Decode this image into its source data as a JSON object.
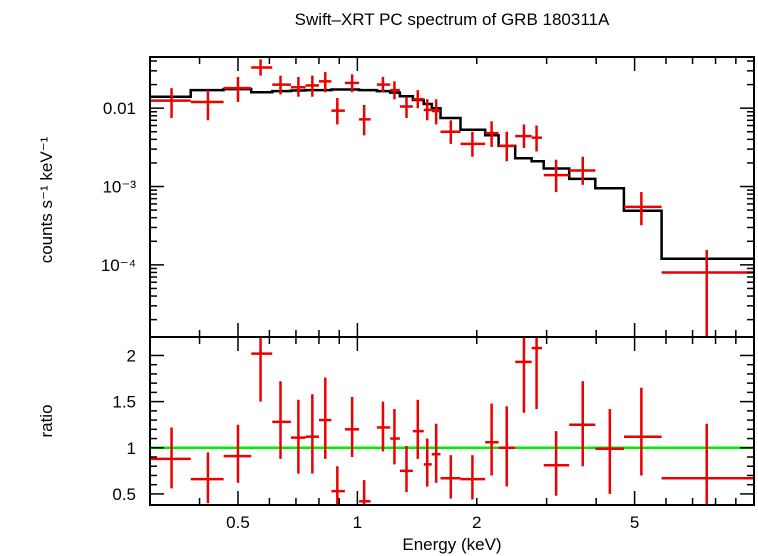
{
  "chart_data": [
    {
      "type": "scatter",
      "panel": "spectrum",
      "title": "Swift–XRT PC spectrum of GRB 180311A",
      "ylabel": "counts s⁻¹ keV⁻¹",
      "xscale": "log",
      "yscale": "log",
      "xlim": [
        0.3,
        10
      ],
      "ylim": [
        1.2e-05,
        0.045
      ],
      "ytick_labels": [
        "0.01",
        "10⁻³",
        "10⁻⁴"
      ],
      "colors": {
        "data": "#ee0000",
        "model": "#000000"
      },
      "series": [
        {
          "name": "data",
          "points": [
            {
              "x": 0.34,
              "xlo": 0.3,
              "xhi": 0.38,
              "y": 0.0125,
              "ylo": 0.0075,
              "yhi": 0.018
            },
            {
              "x": 0.42,
              "xlo": 0.38,
              "xhi": 0.46,
              "y": 0.012,
              "ylo": 0.007,
              "yhi": 0.017
            },
            {
              "x": 0.5,
              "xlo": 0.46,
              "xhi": 0.54,
              "y": 0.018,
              "ylo": 0.012,
              "yhi": 0.025
            },
            {
              "x": 0.57,
              "xlo": 0.54,
              "xhi": 0.61,
              "y": 0.033,
              "ylo": 0.026,
              "yhi": 0.042
            },
            {
              "x": 0.64,
              "xlo": 0.61,
              "xhi": 0.68,
              "y": 0.02,
              "ylo": 0.015,
              "yhi": 0.026
            },
            {
              "x": 0.71,
              "xlo": 0.68,
              "xhi": 0.74,
              "y": 0.0185,
              "ylo": 0.014,
              "yhi": 0.025
            },
            {
              "x": 0.77,
              "xlo": 0.74,
              "xhi": 0.8,
              "y": 0.0195,
              "ylo": 0.014,
              "yhi": 0.026
            },
            {
              "x": 0.83,
              "xlo": 0.8,
              "xhi": 0.86,
              "y": 0.022,
              "ylo": 0.016,
              "yhi": 0.029
            },
            {
              "x": 0.89,
              "xlo": 0.86,
              "xhi": 0.93,
              "y": 0.0093,
              "ylo": 0.0062,
              "yhi": 0.0135
            },
            {
              "x": 0.97,
              "xlo": 0.93,
              "xhi": 1.01,
              "y": 0.021,
              "ylo": 0.016,
              "yhi": 0.027
            },
            {
              "x": 1.04,
              "xlo": 1.01,
              "xhi": 1.08,
              "y": 0.0072,
              "ylo": 0.0045,
              "yhi": 0.011
            },
            {
              "x": 1.16,
              "xlo": 1.12,
              "xhi": 1.21,
              "y": 0.02,
              "ylo": 0.016,
              "yhi": 0.025
            },
            {
              "x": 1.24,
              "xlo": 1.21,
              "xhi": 1.28,
              "y": 0.017,
              "ylo": 0.013,
              "yhi": 0.022
            },
            {
              "x": 1.33,
              "xlo": 1.28,
              "xhi": 1.38,
              "y": 0.0105,
              "ylo": 0.0075,
              "yhi": 0.014
            },
            {
              "x": 1.42,
              "xlo": 1.38,
              "xhi": 1.47,
              "y": 0.013,
              "ylo": 0.01,
              "yhi": 0.017
            },
            {
              "x": 1.5,
              "xlo": 1.47,
              "xhi": 1.54,
              "y": 0.0095,
              "ylo": 0.007,
              "yhi": 0.013
            },
            {
              "x": 1.58,
              "xlo": 1.54,
              "xhi": 1.62,
              "y": 0.0092,
              "ylo": 0.0062,
              "yhi": 0.013
            },
            {
              "x": 1.72,
              "xlo": 1.62,
              "xhi": 1.82,
              "y": 0.005,
              "ylo": 0.0035,
              "yhi": 0.007
            },
            {
              "x": 1.95,
              "xlo": 1.82,
              "xhi": 2.1,
              "y": 0.0035,
              "ylo": 0.0024,
              "yhi": 0.005
            },
            {
              "x": 2.18,
              "xlo": 2.1,
              "xhi": 2.27,
              "y": 0.0048,
              "ylo": 0.0032,
              "yhi": 0.0068
            },
            {
              "x": 2.38,
              "xlo": 2.27,
              "xhi": 2.5,
              "y": 0.0033,
              "ylo": 0.0021,
              "yhi": 0.005
            },
            {
              "x": 2.63,
              "xlo": 2.5,
              "xhi": 2.75,
              "y": 0.0044,
              "ylo": 0.0031,
              "yhi": 0.0062
            },
            {
              "x": 2.83,
              "xlo": 2.75,
              "xhi": 2.92,
              "y": 0.0042,
              "ylo": 0.0028,
              "yhi": 0.006
            },
            {
              "x": 3.17,
              "xlo": 2.95,
              "xhi": 3.42,
              "y": 0.0014,
              "ylo": 0.00085,
              "yhi": 0.0022
            },
            {
              "x": 3.7,
              "xlo": 3.42,
              "xhi": 3.98,
              "y": 0.0016,
              "ylo": 0.00105,
              "yhi": 0.0024
            },
            {
              "x": 5.2,
              "xlo": 4.7,
              "xhi": 5.85,
              "y": 0.00055,
              "ylo": 0.00032,
              "yhi": 0.00085
            },
            {
              "x": 7.6,
              "xlo": 5.85,
              "xhi": 10.0,
              "y": 8e-05,
              "ylo": 1.2e-05,
              "yhi": 0.000155
            }
          ]
        },
        {
          "name": "model",
          "steps": [
            {
              "x0": 0.3,
              "x1": 0.38,
              "y": 0.014
            },
            {
              "x0": 0.38,
              "x1": 0.46,
              "y": 0.017
            },
            {
              "x0": 0.46,
              "x1": 0.54,
              "y": 0.0175
            },
            {
              "x0": 0.54,
              "x1": 0.61,
              "y": 0.016
            },
            {
              "x0": 0.61,
              "x1": 0.68,
              "y": 0.0165
            },
            {
              "x0": 0.68,
              "x1": 0.74,
              "y": 0.0168
            },
            {
              "x0": 0.74,
              "x1": 0.86,
              "y": 0.017
            },
            {
              "x0": 0.86,
              "x1": 1.01,
              "y": 0.0173
            },
            {
              "x0": 1.01,
              "x1": 1.12,
              "y": 0.017
            },
            {
              "x0": 1.12,
              "x1": 1.21,
              "y": 0.0165
            },
            {
              "x0": 1.21,
              "x1": 1.28,
              "y": 0.0158
            },
            {
              "x0": 1.28,
              "x1": 1.38,
              "y": 0.0142
            },
            {
              "x0": 1.38,
              "x1": 1.47,
              "y": 0.0127
            },
            {
              "x0": 1.47,
              "x1": 1.54,
              "y": 0.0113
            },
            {
              "x0": 1.54,
              "x1": 1.62,
              "y": 0.01
            },
            {
              "x0": 1.62,
              "x1": 1.82,
              "y": 0.0075
            },
            {
              "x0": 1.82,
              "x1": 2.1,
              "y": 0.0053
            },
            {
              "x0": 2.1,
              "x1": 2.27,
              "y": 0.0045
            },
            {
              "x0": 2.27,
              "x1": 2.5,
              "y": 0.0033
            },
            {
              "x0": 2.5,
              "x1": 2.75,
              "y": 0.0023
            },
            {
              "x0": 2.75,
              "x1": 2.95,
              "y": 0.0021
            },
            {
              "x0": 2.95,
              "x1": 3.42,
              "y": 0.0017
            },
            {
              "x0": 3.42,
              "x1": 3.98,
              "y": 0.00125
            },
            {
              "x0": 3.98,
              "x1": 4.7,
              "y": 0.00095
            },
            {
              "x0": 4.7,
              "x1": 5.85,
              "y": 0.00049
            },
            {
              "x0": 5.85,
              "x1": 10.0,
              "y": 0.00012
            }
          ]
        }
      ]
    },
    {
      "type": "scatter",
      "panel": "ratio",
      "xlabel": "Energy (keV)",
      "ylabel": "ratio",
      "xscale": "log",
      "xlim": [
        0.3,
        10
      ],
      "ylim": [
        0.38,
        2.2
      ],
      "x_tick_labels": [
        "0.5",
        "1",
        "2",
        "5"
      ],
      "y_tick_labels": [
        "0.5",
        "1",
        "1.5",
        "2"
      ],
      "reference_line": 1,
      "colors": {
        "data": "#ee0000",
        "reference": "#00ee00"
      },
      "series": [
        {
          "name": "ratio",
          "points": [
            {
              "x": 0.34,
              "xlo": 0.3,
              "xhi": 0.38,
              "y": 0.88,
              "ylo": 0.56,
              "yhi": 1.22
            },
            {
              "x": 0.42,
              "xlo": 0.38,
              "xhi": 0.46,
              "y": 0.66,
              "ylo": 0.4,
              "yhi": 0.95
            },
            {
              "x": 0.5,
              "xlo": 0.46,
              "xhi": 0.54,
              "y": 0.91,
              "ylo": 0.62,
              "yhi": 1.25
            },
            {
              "x": 0.57,
              "xlo": 0.54,
              "xhi": 0.61,
              "y": 2.02,
              "ylo": 1.5,
              "yhi": 2.2
            },
            {
              "x": 0.64,
              "xlo": 0.61,
              "xhi": 0.68,
              "y": 1.28,
              "ylo": 0.88,
              "yhi": 1.72
            },
            {
              "x": 0.71,
              "xlo": 0.68,
              "xhi": 0.74,
              "y": 1.11,
              "ylo": 0.72,
              "yhi": 1.52
            },
            {
              "x": 0.77,
              "xlo": 0.74,
              "xhi": 0.8,
              "y": 1.12,
              "ylo": 0.72,
              "yhi": 1.58
            },
            {
              "x": 0.83,
              "xlo": 0.8,
              "xhi": 0.86,
              "y": 1.3,
              "ylo": 0.88,
              "yhi": 1.76
            },
            {
              "x": 0.89,
              "xlo": 0.86,
              "xhi": 0.93,
              "y": 0.53,
              "ylo": 0.3,
              "yhi": 0.8
            },
            {
              "x": 0.97,
              "xlo": 0.93,
              "xhi": 1.01,
              "y": 1.2,
              "ylo": 0.9,
              "yhi": 1.55
            },
            {
              "x": 1.04,
              "xlo": 1.01,
              "xhi": 1.08,
              "y": 0.42,
              "ylo": 0.25,
              "yhi": 0.65
            },
            {
              "x": 1.16,
              "xlo": 1.12,
              "xhi": 1.21,
              "y": 1.22,
              "ylo": 0.96,
              "yhi": 1.5
            },
            {
              "x": 1.24,
              "xlo": 1.21,
              "xhi": 1.28,
              "y": 1.1,
              "ylo": 0.82,
              "yhi": 1.42
            },
            {
              "x": 1.33,
              "xlo": 1.28,
              "xhi": 1.38,
              "y": 0.75,
              "ylo": 0.52,
              "yhi": 1.02
            },
            {
              "x": 1.42,
              "xlo": 1.38,
              "xhi": 1.47,
              "y": 1.18,
              "ylo": 0.88,
              "yhi": 1.52
            },
            {
              "x": 1.5,
              "xlo": 1.47,
              "xhi": 1.54,
              "y": 0.82,
              "ylo": 0.58,
              "yhi": 1.1
            },
            {
              "x": 1.58,
              "xlo": 1.54,
              "xhi": 1.62,
              "y": 0.93,
              "ylo": 0.62,
              "yhi": 1.26
            },
            {
              "x": 1.72,
              "xlo": 1.62,
              "xhi": 1.82,
              "y": 0.67,
              "ylo": 0.45,
              "yhi": 0.92
            },
            {
              "x": 1.95,
              "xlo": 1.82,
              "xhi": 2.1,
              "y": 0.66,
              "ylo": 0.44,
              "yhi": 0.92
            },
            {
              "x": 2.18,
              "xlo": 2.1,
              "xhi": 2.27,
              "y": 1.06,
              "ylo": 0.7,
              "yhi": 1.48
            },
            {
              "x": 2.38,
              "xlo": 2.27,
              "xhi": 2.5,
              "y": 1.0,
              "ylo": 0.58,
              "yhi": 1.45
            },
            {
              "x": 2.63,
              "xlo": 2.5,
              "xhi": 2.75,
              "y": 1.93,
              "ylo": 1.38,
              "yhi": 2.2
            },
            {
              "x": 2.83,
              "xlo": 2.75,
              "xhi": 2.92,
              "y": 2.08,
              "ylo": 1.42,
              "yhi": 2.2
            },
            {
              "x": 3.17,
              "xlo": 2.95,
              "xhi": 3.42,
              "y": 0.81,
              "ylo": 0.48,
              "yhi": 1.18
            },
            {
              "x": 3.7,
              "xlo": 3.42,
              "xhi": 3.98,
              "y": 1.25,
              "ylo": 0.8,
              "yhi": 1.72
            },
            {
              "x": 4.33,
              "xlo": 3.98,
              "xhi": 4.7,
              "y": 0.99,
              "ylo": 0.5,
              "yhi": 1.42
            },
            {
              "x": 5.2,
              "xlo": 4.7,
              "xhi": 5.85,
              "y": 1.12,
              "ylo": 0.7,
              "yhi": 1.65
            },
            {
              "x": 7.6,
              "xlo": 5.85,
              "xhi": 10.0,
              "y": 0.67,
              "ylo": 0.38,
              "yhi": 1.26
            }
          ]
        }
      ]
    }
  ]
}
